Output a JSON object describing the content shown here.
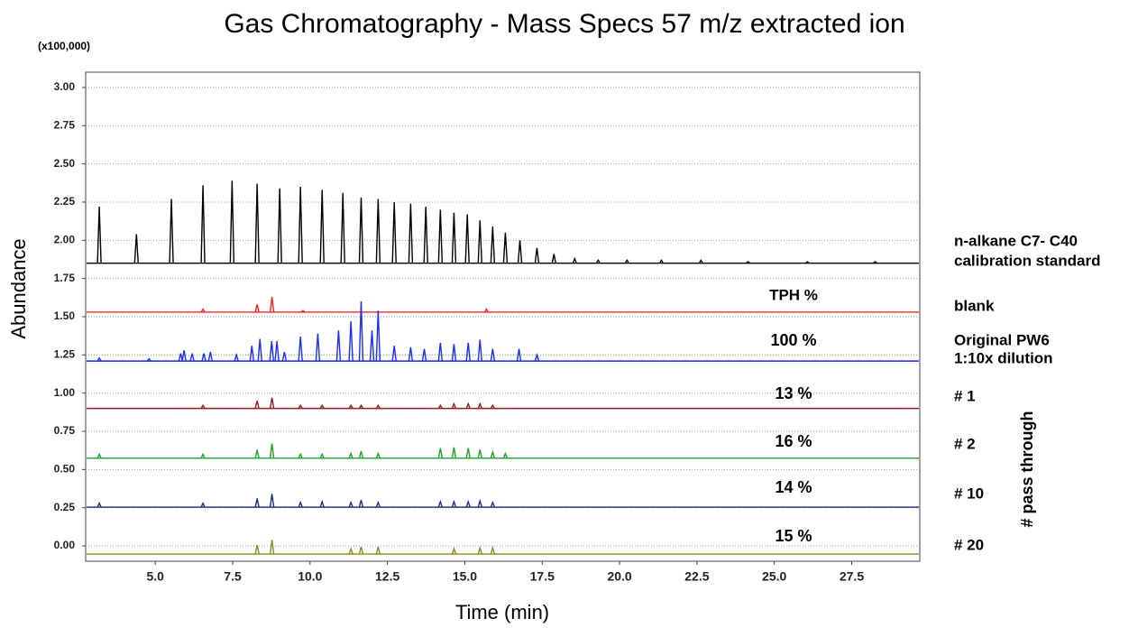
{
  "chart_data": {
    "type": "chromatogram",
    "title": "Gas Chromatography - Mass Specs 57 m/z extracted ion",
    "y_unit": "(x100,000)",
    "y_label": "Abundance",
    "x_label": "Time (min)",
    "tph_header": "TPH %",
    "group_label": "# pass through",
    "xlim": [
      2.75,
      29.7
    ],
    "ylim": [
      -0.1,
      3.1
    ],
    "xticks": [
      {
        "value": 5,
        "label": "5.0"
      },
      {
        "value": 7.5,
        "label": "7.5"
      },
      {
        "value": 10,
        "label": "10.0"
      },
      {
        "value": 12.5,
        "label": "12.5"
      },
      {
        "value": 15,
        "label": "15.0"
      },
      {
        "value": 17.5,
        "label": "17.5"
      },
      {
        "value": 20,
        "label": "20.0"
      },
      {
        "value": 22.5,
        "label": "22.5"
      },
      {
        "value": 25,
        "label": "25.0"
      },
      {
        "value": 27.5,
        "label": "27.5"
      }
    ],
    "yticks": [
      {
        "value": 0,
        "label": "0.00"
      },
      {
        "value": 0.25,
        "label": "0.25"
      },
      {
        "value": 0.5,
        "label": "0.50"
      },
      {
        "value": 0.75,
        "label": "0.75"
      },
      {
        "value": 1,
        "label": "1.00"
      },
      {
        "value": 1.25,
        "label": "1.25"
      },
      {
        "value": 1.5,
        "label": "1.50"
      },
      {
        "value": 1.75,
        "label": "1.75"
      },
      {
        "value": 2,
        "label": "2.00"
      },
      {
        "value": 2.25,
        "label": "2.25"
      },
      {
        "value": 2.5,
        "label": "2.50"
      },
      {
        "value": 2.75,
        "label": "2.75"
      },
      {
        "value": 3,
        "label": "3.00"
      }
    ],
    "grid": true,
    "series": [
      {
        "name": [
          "n-alkane C7- C40",
          "calibration standard"
        ],
        "color": "#000000",
        "label_color": "#000000",
        "baseline": 1.85,
        "x": [
          3.19,
          4.39,
          5.52,
          6.54,
          7.48,
          8.29,
          9.02,
          9.69,
          10.39,
          11.06,
          11.65,
          12.2,
          12.72,
          13.25,
          13.74,
          14.21,
          14.65,
          15.08,
          15.49,
          15.9,
          16.31,
          16.78,
          17.33,
          17.88,
          18.55,
          19.31,
          20.24,
          21.35,
          22.63,
          24.15,
          26.07,
          28.26
        ],
        "values": [
          2.22,
          2.04,
          2.27,
          2.36,
          2.39,
          2.37,
          2.34,
          2.35,
          2.33,
          2.31,
          2.28,
          2.27,
          2.25,
          2.24,
          2.22,
          2.2,
          2.18,
          2.17,
          2.13,
          2.09,
          2.05,
          2.0,
          1.95,
          1.91,
          1.88,
          1.87,
          1.87,
          1.87,
          1.87,
          1.86,
          1.86,
          1.86
        ]
      },
      {
        "name": [
          "blank"
        ],
        "color": "#ff2020",
        "label_color": "#ff1010",
        "baseline": 1.53,
        "x": [
          6.54,
          8.29,
          8.77,
          9.77,
          15.7
        ],
        "values": [
          1.55,
          1.58,
          1.63,
          1.54,
          1.55
        ]
      },
      {
        "name": [
          "Original PW6",
          "1:10x dilution"
        ],
        "color": "#1a2cff",
        "label_color": "#5522cc",
        "baseline": 1.21,
        "tph": "100 %",
        "tph_color": "#1f7fc0",
        "x": [
          3.19,
          4.8,
          5.82,
          5.93,
          6.19,
          6.57,
          6.78,
          7.62,
          8.12,
          8.38,
          8.76,
          8.93,
          9.17,
          9.69,
          10.25,
          10.92,
          11.32,
          11.65,
          12.0,
          12.2,
          12.72,
          13.25,
          13.69,
          14.21,
          14.65,
          15.11,
          15.49,
          15.9,
          16.75,
          17.33
        ],
        "values": [
          1.23,
          1.225,
          1.26,
          1.28,
          1.26,
          1.26,
          1.27,
          1.25,
          1.31,
          1.355,
          1.34,
          1.34,
          1.27,
          1.37,
          1.39,
          1.41,
          1.47,
          1.6,
          1.41,
          1.54,
          1.31,
          1.3,
          1.29,
          1.33,
          1.32,
          1.33,
          1.35,
          1.29,
          1.29,
          1.25
        ]
      },
      {
        "name": [
          "# 1"
        ],
        "color": "#8b2020",
        "label_color": "#a03a3a",
        "baseline": 0.9,
        "tph": "13 %",
        "tph_color": "#b06a2a",
        "x": [
          6.54,
          8.29,
          8.77,
          9.69,
          10.39,
          11.32,
          11.65,
          12.2,
          14.21,
          14.65,
          15.11,
          15.49,
          15.9
        ],
        "values": [
          0.92,
          0.95,
          0.97,
          0.92,
          0.92,
          0.92,
          0.92,
          0.92,
          0.92,
          0.93,
          0.93,
          0.93,
          0.92
        ]
      },
      {
        "name": [
          "# 2"
        ],
        "color": "#22a02a",
        "label_color": "#22a02a",
        "baseline": 0.574,
        "tph": "16 %",
        "tph_color": "#2aa85a",
        "x": [
          3.19,
          6.54,
          8.29,
          8.77,
          9.69,
          10.39,
          11.32,
          11.65,
          12.2,
          14.21,
          14.65,
          15.11,
          15.49,
          15.9,
          16.31
        ],
        "values": [
          0.6,
          0.6,
          0.63,
          0.67,
          0.6,
          0.6,
          0.605,
          0.62,
          0.605,
          0.64,
          0.645,
          0.64,
          0.63,
          0.615,
          0.605
        ]
      },
      {
        "name": [
          "# 10"
        ],
        "color": "#1a2d80",
        "label_color": "#1a2d80",
        "baseline": 0.254,
        "tph": "14 %",
        "tph_color": "#1a2d80",
        "x": [
          3.19,
          6.54,
          8.29,
          8.77,
          9.69,
          10.39,
          11.32,
          11.65,
          12.2,
          14.21,
          14.65,
          15.11,
          15.49,
          15.9
        ],
        "values": [
          0.28,
          0.28,
          0.31,
          0.34,
          0.285,
          0.29,
          0.285,
          0.3,
          0.285,
          0.29,
          0.29,
          0.29,
          0.295,
          0.285
        ]
      },
      {
        "name": [
          "# 20"
        ],
        "color": "#8a8a20",
        "label_color": "#7a7a30",
        "baseline": -0.053,
        "tph": "15 %",
        "tph_color": "#8a8a40",
        "x": [
          8.29,
          8.77,
          11.32,
          11.65,
          12.2,
          14.65,
          15.49,
          15.9
        ],
        "values": [
          0.006,
          0.04,
          -0.018,
          -0.006,
          -0.006,
          -0.018,
          -0.012,
          -0.012
        ]
      }
    ]
  }
}
